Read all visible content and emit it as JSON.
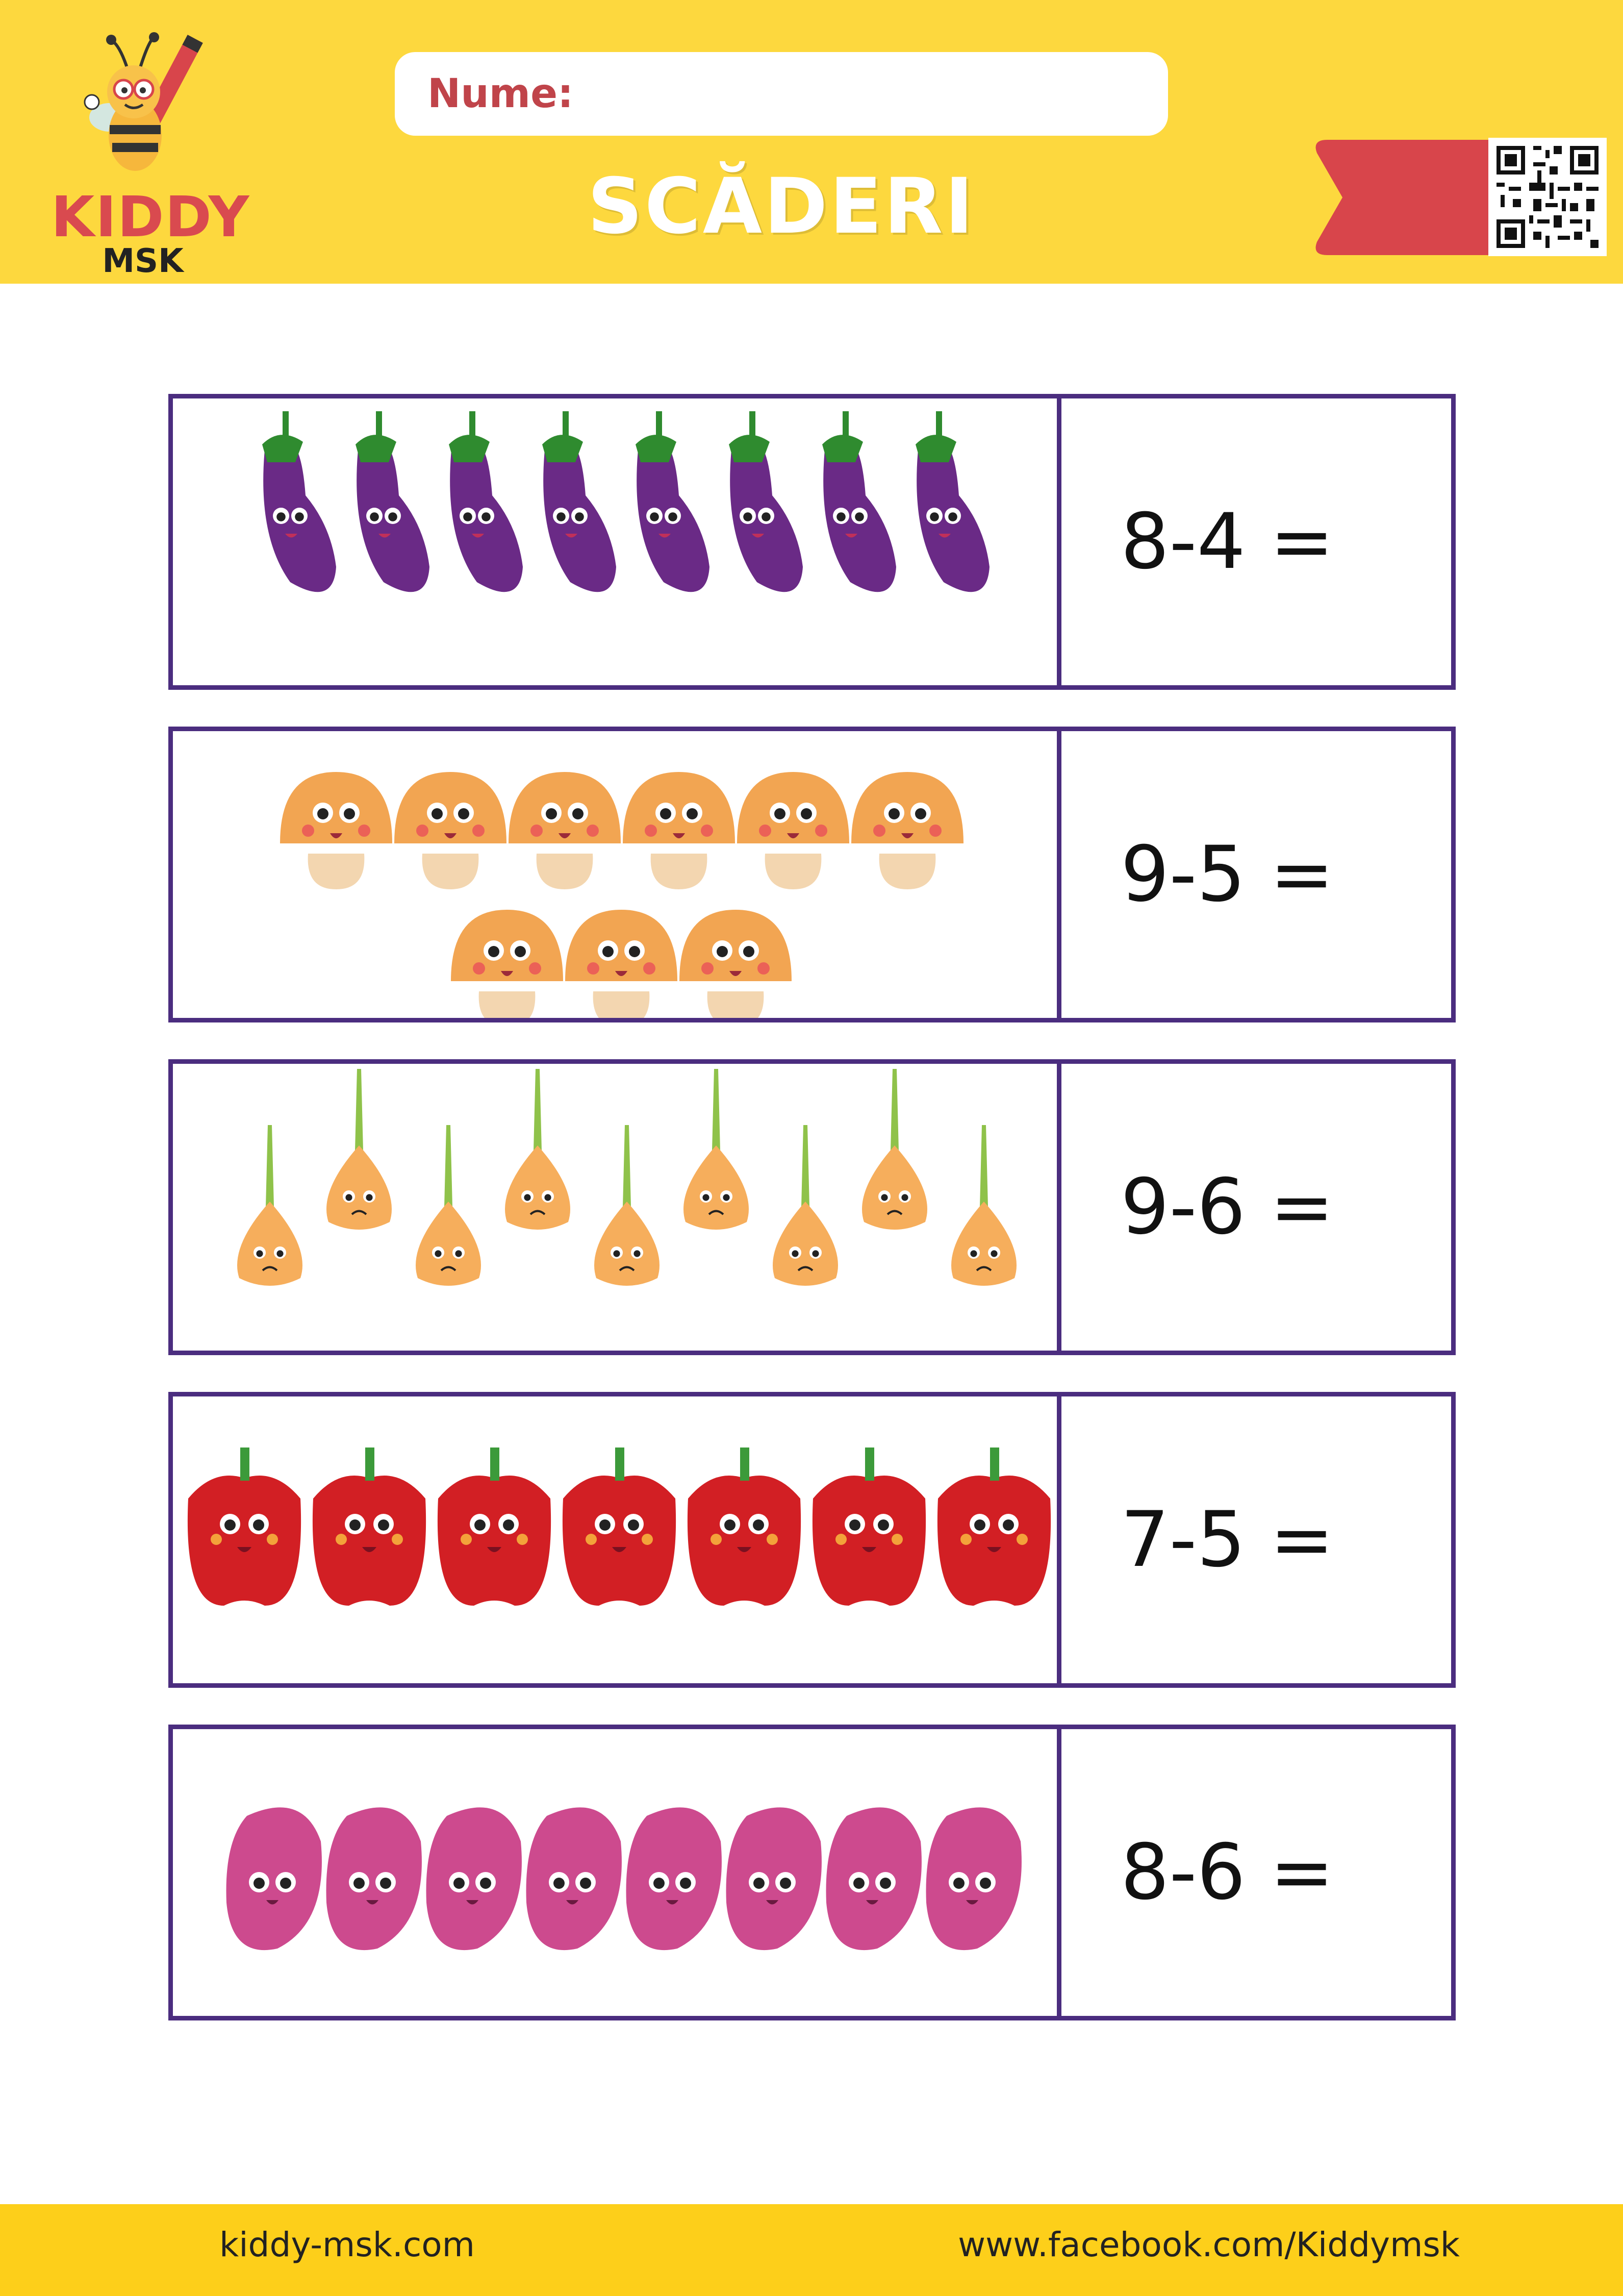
{
  "brand": {
    "name_line1": "KIDDY",
    "name_line2": "MSK"
  },
  "name_field": {
    "label": "Nume:"
  },
  "title": "SCĂDERI",
  "rows": [
    {
      "item_icon": "eggplant-icon",
      "count": 8,
      "equation": "8-4 ="
    },
    {
      "item_icon": "mushroom-icon",
      "count": 9,
      "equation": "9-5 ="
    },
    {
      "item_icon": "onion-icon",
      "count": 9,
      "equation": "9-6 ="
    },
    {
      "item_icon": "bell-pepper-icon",
      "count": 7,
      "equation": "7-5 ="
    },
    {
      "item_icon": "potato-icon",
      "count": 8,
      "equation": "8-6 ="
    }
  ],
  "footer": {
    "website": "kiddy-msk.com",
    "facebook": "www.facebook.com/Kiddymsk"
  },
  "colors": {
    "header_bg": "#fdd83e",
    "footer_bg": "#fdcf1a",
    "frame": "#4b2d7f",
    "ribbon": "#d8454b",
    "brand_red": "#d94a4f"
  }
}
